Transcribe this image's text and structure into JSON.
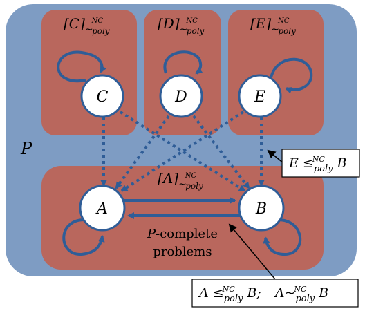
{
  "colors": {
    "outer_region": "#7e9cc3",
    "class_box": "#b9675d",
    "node_fill": "#ffffff",
    "node_stroke": "#2f5d97",
    "edge": "#2f5d97",
    "label_box_stroke": "#000000"
  },
  "region": {
    "label": "P"
  },
  "classes": {
    "C": {
      "base": "[C]",
      "rel": "~",
      "sup": "NC",
      "sub": "poly"
    },
    "D": {
      "base": "[D]",
      "rel": "~",
      "sup": "NC",
      "sub": "poly"
    },
    "E": {
      "base": "[E]",
      "rel": "~",
      "sup": "NC",
      "sub": "poly"
    },
    "A": {
      "base": "[A]",
      "rel": "~",
      "sup": "NC",
      "sub": "poly"
    }
  },
  "nodes": {
    "A": "A",
    "B": "B",
    "C": "C",
    "D": "D",
    "E": "E"
  },
  "bottom_box": {
    "line1_prefix": "P",
    "line1_suffix": "-complete",
    "line2": "problems"
  },
  "callout_eb": {
    "left": "E",
    "rel": "≤",
    "sup": "NC",
    "sub": "poly",
    "right": "B"
  },
  "callout_ab": {
    "part1_left": "A",
    "part1_rel": "≤",
    "part1_sup": "NC",
    "part1_sub": "poly",
    "part1_right": "B;",
    "part2_left": "A~",
    "part2_sup": "NC",
    "part2_sub": "poly",
    "part2_right": "B"
  }
}
